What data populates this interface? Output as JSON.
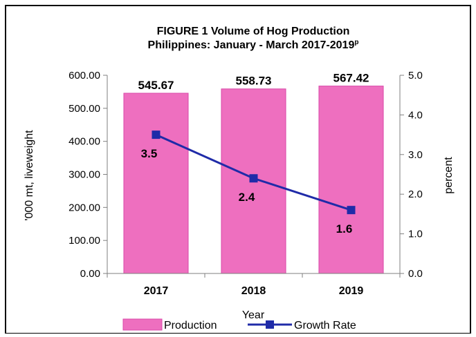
{
  "chart_data": {
    "type": "bar",
    "title_line1": "FIGURE 1 Volume of Hog Production",
    "title_line2": "Philippines: January - March 2017-2019",
    "title_superscript": "p",
    "categories": [
      "2017",
      "2018",
      "2019"
    ],
    "xlabel": "Year",
    "ylabel": "'000 mt, liveweight",
    "y2label": "percent",
    "ylim": [
      0,
      600
    ],
    "y2lim": [
      0,
      5
    ],
    "yticks": [
      "0.00",
      "100.00",
      "200.00",
      "300.00",
      "400.00",
      "500.00",
      "600.00"
    ],
    "y2ticks": [
      "0.0",
      "1.0",
      "2.0",
      "3.0",
      "4.0",
      "5.0"
    ],
    "series": [
      {
        "name": "Production",
        "kind": "bar",
        "axis": "left",
        "values": [
          545.67,
          558.73,
          567.42
        ],
        "labels": [
          "545.67",
          "558.73",
          "567.42"
        ],
        "color": "#ee6fbf"
      },
      {
        "name": "Growth Rate",
        "kind": "line",
        "axis": "right",
        "values": [
          3.5,
          2.4,
          1.6
        ],
        "labels": [
          "3.5",
          "2.4",
          "1.6"
        ],
        "color": "#1f2ba8"
      }
    ],
    "legend_position": "bottom",
    "grid": false
  }
}
